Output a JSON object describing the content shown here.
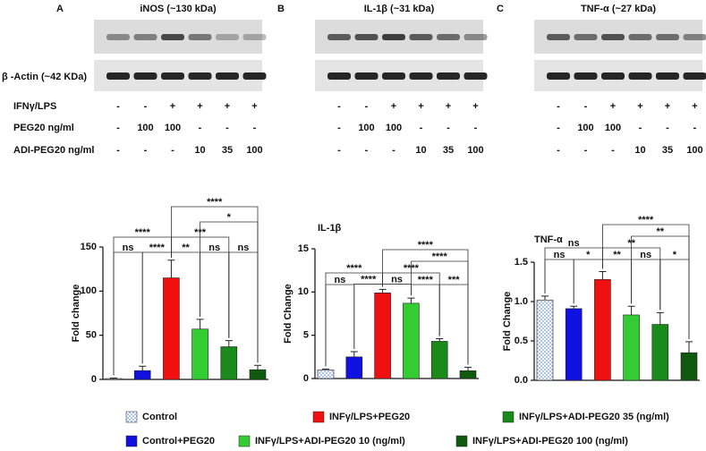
{
  "blots": {
    "actin_label": "β -Actin (~42 KDa)",
    "row_labels": [
      "IFNγ/LPS",
      "PEG20 ng/ml",
      "ADI-PEG20 ng/ml"
    ],
    "panels": [
      {
        "letter": "A",
        "title": "iNOS (~130 kDa)",
        "lanes": [
          [
            "-",
            "-",
            "+",
            "+",
            "+",
            "+"
          ],
          [
            "-",
            "100",
            "100",
            "-",
            "-",
            "-"
          ],
          [
            "-",
            "-",
            "-",
            "10",
            "35",
            "100"
          ]
        ]
      },
      {
        "letter": "B",
        "title": "IL-1β (~31 kDa)",
        "lanes": [
          [
            "-",
            "-",
            "+",
            "+",
            "+",
            "+"
          ],
          [
            "-",
            "100",
            "100",
            "-",
            "-",
            "-"
          ],
          [
            "-",
            "-",
            "-",
            "10",
            "35",
            "100"
          ]
        ]
      },
      {
        "letter": "C",
        "title": "TNF-α (~27 kDa)",
        "lanes": [
          [
            "-",
            "-",
            "+",
            "+",
            "+",
            "+"
          ],
          [
            "-",
            "100",
            "100",
            "-",
            "-",
            "-"
          ],
          [
            "-",
            "-",
            "-",
            "10",
            "35",
            "100"
          ]
        ]
      }
    ]
  },
  "legend": [
    {
      "name": "Control",
      "color": "#a9c4f0",
      "pattern": "checker"
    },
    {
      "name": "Control+PEG20",
      "color": "#1010e0"
    },
    {
      "name": "INFγ/LPS+PEG20",
      "color": "#f01010"
    },
    {
      "name": "INFγ/LPS+ADI-PEG20 10 (ng/ml)",
      "color": "#33cc33"
    },
    {
      "name": "INFγ/LPS+ADI-PEG20 35 (ng/ml)",
      "color": "#1a8a1a"
    },
    {
      "name": "INFγ/LPS+ADI-PEG20 100 (ng/ml)",
      "color": "#0f5a0f"
    }
  ],
  "chart_data": [
    {
      "type": "bar",
      "ylabel": "Fold change",
      "ylim": [
        0,
        150
      ],
      "yticks": [
        0,
        50,
        100,
        150
      ],
      "values": [
        1,
        10,
        115,
        57,
        37,
        11
      ],
      "errors": [
        0.5,
        5,
        20,
        11,
        7,
        5
      ],
      "significance": [
        {
          "from": 0,
          "to": 1,
          "label": "ns"
        },
        {
          "from": 1,
          "to": 2,
          "label": "****"
        },
        {
          "from": 2,
          "to": 3,
          "label": "**"
        },
        {
          "from": 3,
          "to": 4,
          "label": "ns"
        },
        {
          "from": 4,
          "to": 5,
          "label": "ns"
        },
        {
          "from": 0,
          "to": 2,
          "label": "****"
        },
        {
          "from": 2,
          "to": 4,
          "label": "***"
        },
        {
          "from": 3,
          "to": 5,
          "label": "*"
        },
        {
          "from": 2,
          "to": 5,
          "label": "****"
        }
      ]
    },
    {
      "type": "bar",
      "title": "IL-1β",
      "ylabel": "Fold Change",
      "ylim": [
        0,
        15
      ],
      "yticks": [
        0,
        5,
        10,
        15
      ],
      "values": [
        1,
        2.5,
        9.9,
        8.7,
        4.3,
        0.9
      ],
      "errors": [
        0.1,
        0.6,
        0.4,
        0.6,
        0.3,
        0.4
      ],
      "significance": [
        {
          "from": 0,
          "to": 1,
          "label": "ns"
        },
        {
          "from": 1,
          "to": 2,
          "label": "****"
        },
        {
          "from": 2,
          "to": 3,
          "label": "ns"
        },
        {
          "from": 3,
          "to": 4,
          "label": "****"
        },
        {
          "from": 0,
          "to": 2,
          "label": "****"
        },
        {
          "from": 2,
          "to": 4,
          "label": "****"
        },
        {
          "from": 4,
          "to": 5,
          "label": "***"
        },
        {
          "from": 3,
          "to": 5,
          "label": "****"
        },
        {
          "from": 2,
          "to": 5,
          "label": "****"
        }
      ]
    },
    {
      "type": "bar",
      "title": "TNF-α",
      "ylabel": "Fold Change",
      "ylim": [
        0,
        1.5
      ],
      "yticks": [
        {
          "value": 0,
          "label": "0.0"
        },
        0.5,
        {
          "value": 1,
          "label": "1.0"
        },
        1.5
      ],
      "values": [
        1.02,
        0.91,
        1.28,
        0.83,
        0.71,
        0.35
      ],
      "errors": [
        0.05,
        0.03,
        0.1,
        0.11,
        0.15,
        0.14
      ],
      "significance": [
        {
          "from": 0,
          "to": 1,
          "label": "ns"
        },
        {
          "from": 1,
          "to": 2,
          "label": "*"
        },
        {
          "from": 2,
          "to": 3,
          "label": "**"
        },
        {
          "from": 3,
          "to": 4,
          "label": "ns"
        },
        {
          "from": 4,
          "to": 5,
          "label": "*"
        },
        {
          "from": 0,
          "to": 2,
          "label": "ns"
        },
        {
          "from": 2,
          "to": 4,
          "label": "**"
        },
        {
          "from": 3,
          "to": 5,
          "label": "**"
        },
        {
          "from": 2,
          "to": 5,
          "label": "****"
        }
      ]
    }
  ]
}
